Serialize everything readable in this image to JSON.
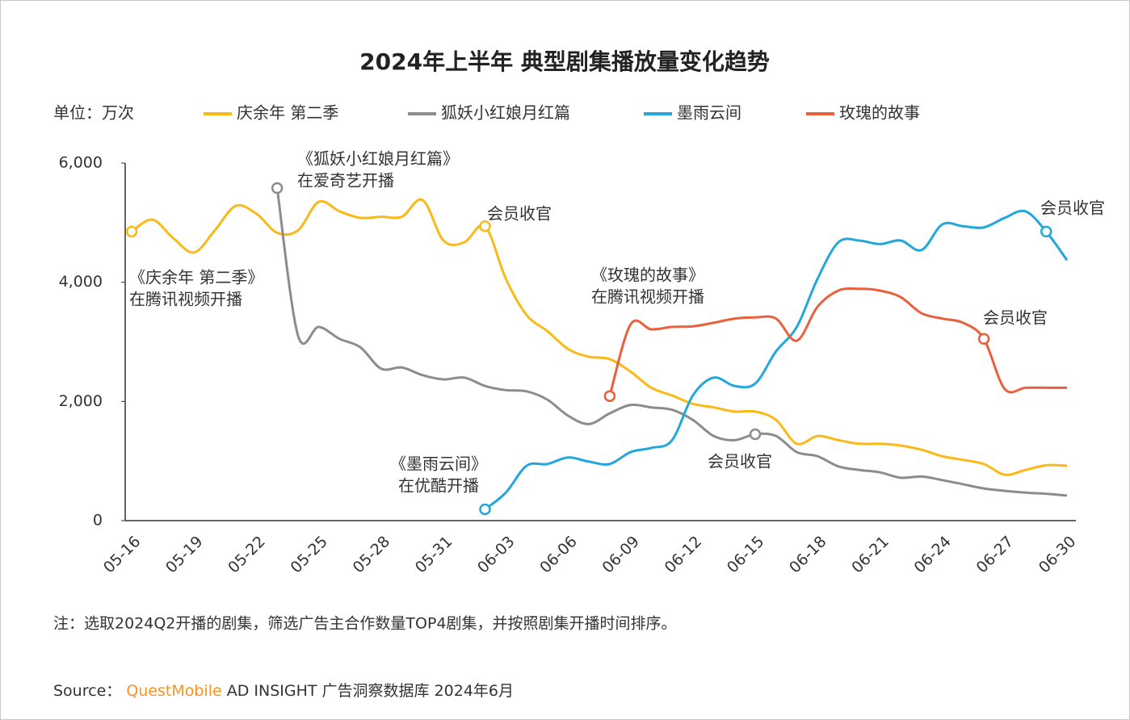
{
  "chart_data": {
    "type": "line",
    "title": "2024年上半年 典型剧集播放量变化趋势",
    "unit_label": "单位：万次",
    "categories": [
      "05-16",
      null,
      null,
      "05-19",
      null,
      null,
      "05-22",
      null,
      null,
      "05-25",
      null,
      null,
      "05-28",
      null,
      null,
      "05-31",
      null,
      null,
      "06-03",
      null,
      null,
      "06-06",
      null,
      null,
      "06-09",
      null,
      null,
      "06-12",
      null,
      null,
      "06-15",
      null,
      null,
      "06-18",
      null,
      null,
      "06-21",
      null,
      null,
      "06-24",
      null,
      null,
      "06-27",
      null,
      null,
      "06-30"
    ],
    "ylim": [
      0,
      6000
    ],
    "yticks": [
      0,
      {
        "value": 2000,
        "label": "2,000"
      },
      {
        "value": 4000,
        "label": "4,000"
      },
      {
        "value": 6000,
        "label": "6,000"
      }
    ],
    "series": [
      {
        "name": "庆余年 第二季",
        "color": "#fbb917",
        "values": [
          4850,
          5050,
          4740,
          4500,
          4870,
          5280,
          5150,
          4830,
          4870,
          5350,
          5190,
          5080,
          5100,
          5100,
          5380,
          4700,
          4670,
          4940,
          4060,
          3450,
          3180,
          2880,
          2750,
          2710,
          2500,
          2230,
          2100,
          1960,
          1900,
          1830,
          1830,
          1690,
          1290,
          1420,
          1350,
          1290,
          1290,
          1260,
          1190,
          1080,
          1020,
          950,
          770,
          850,
          930,
          920
        ]
      },
      {
        "name": "狐妖小红娘月红篇",
        "color": "#8c8c8c",
        "values": [
          null,
          null,
          null,
          null,
          null,
          null,
          null,
          5580,
          3110,
          3250,
          3050,
          2910,
          2550,
          2570,
          2440,
          2370,
          2400,
          2260,
          2190,
          2170,
          2030,
          1760,
          1620,
          1800,
          1940,
          1900,
          1860,
          1690,
          1420,
          1350,
          1450,
          1420,
          1150,
          1080,
          910,
          850,
          810,
          720,
          740,
          680,
          610,
          540,
          500,
          470,
          450,
          420
        ]
      },
      {
        "name": "墨雨云间",
        "color": "#22a7dd",
        "values": [
          null,
          null,
          null,
          null,
          null,
          null,
          null,
          null,
          null,
          null,
          null,
          null,
          null,
          null,
          null,
          null,
          null,
          190,
          470,
          920,
          950,
          1060,
          990,
          950,
          1150,
          1220,
          1350,
          2100,
          2400,
          2260,
          2300,
          2840,
          3250,
          4060,
          4670,
          4700,
          4640,
          4700,
          4540,
          4970,
          4940,
          4920,
          5080,
          5190,
          4850,
          4370
        ]
      },
      {
        "name": "玫瑰的故事",
        "color": "#e8603c",
        "values": [
          null,
          null,
          null,
          null,
          null,
          null,
          null,
          null,
          null,
          null,
          null,
          null,
          null,
          null,
          null,
          null,
          null,
          null,
          null,
          null,
          null,
          null,
          null,
          2090,
          3290,
          3210,
          3250,
          3260,
          3320,
          3390,
          3410,
          3390,
          3020,
          3590,
          3860,
          3890,
          3860,
          3750,
          3480,
          3390,
          3320,
          3050,
          2210,
          2230,
          2230,
          2230
        ]
      }
    ],
    "annotations": [
      {
        "lines": [
          "《庆余年 第二季》",
          "在腾讯视频开播"
        ]
      },
      {
        "lines": [
          "《狐妖小红娘月红篇》",
          "在爱奇艺开播"
        ]
      },
      {
        "lines": [
          "会员收官"
        ]
      },
      {
        "lines": [
          "《墨雨云间》",
          "在优酷开播"
        ]
      },
      {
        "lines": [
          "《玫瑰的故事》",
          "在腾讯视频开播"
        ]
      },
      {
        "lines": [
          "会员收官"
        ]
      },
      {
        "lines": [
          "会员收官"
        ]
      },
      {
        "lines": [
          "会员收官"
        ]
      }
    ],
    "footnote": "注：选取2024Q2开播的剧集，筛选广告主合作数量TOP4剧集，并按照剧集开播时间排序。",
    "source": {
      "label": "Source：",
      "brand": "QuestMobile",
      "text": "AD INSIGHT 广告洞察数据库 2024年6月"
    }
  }
}
